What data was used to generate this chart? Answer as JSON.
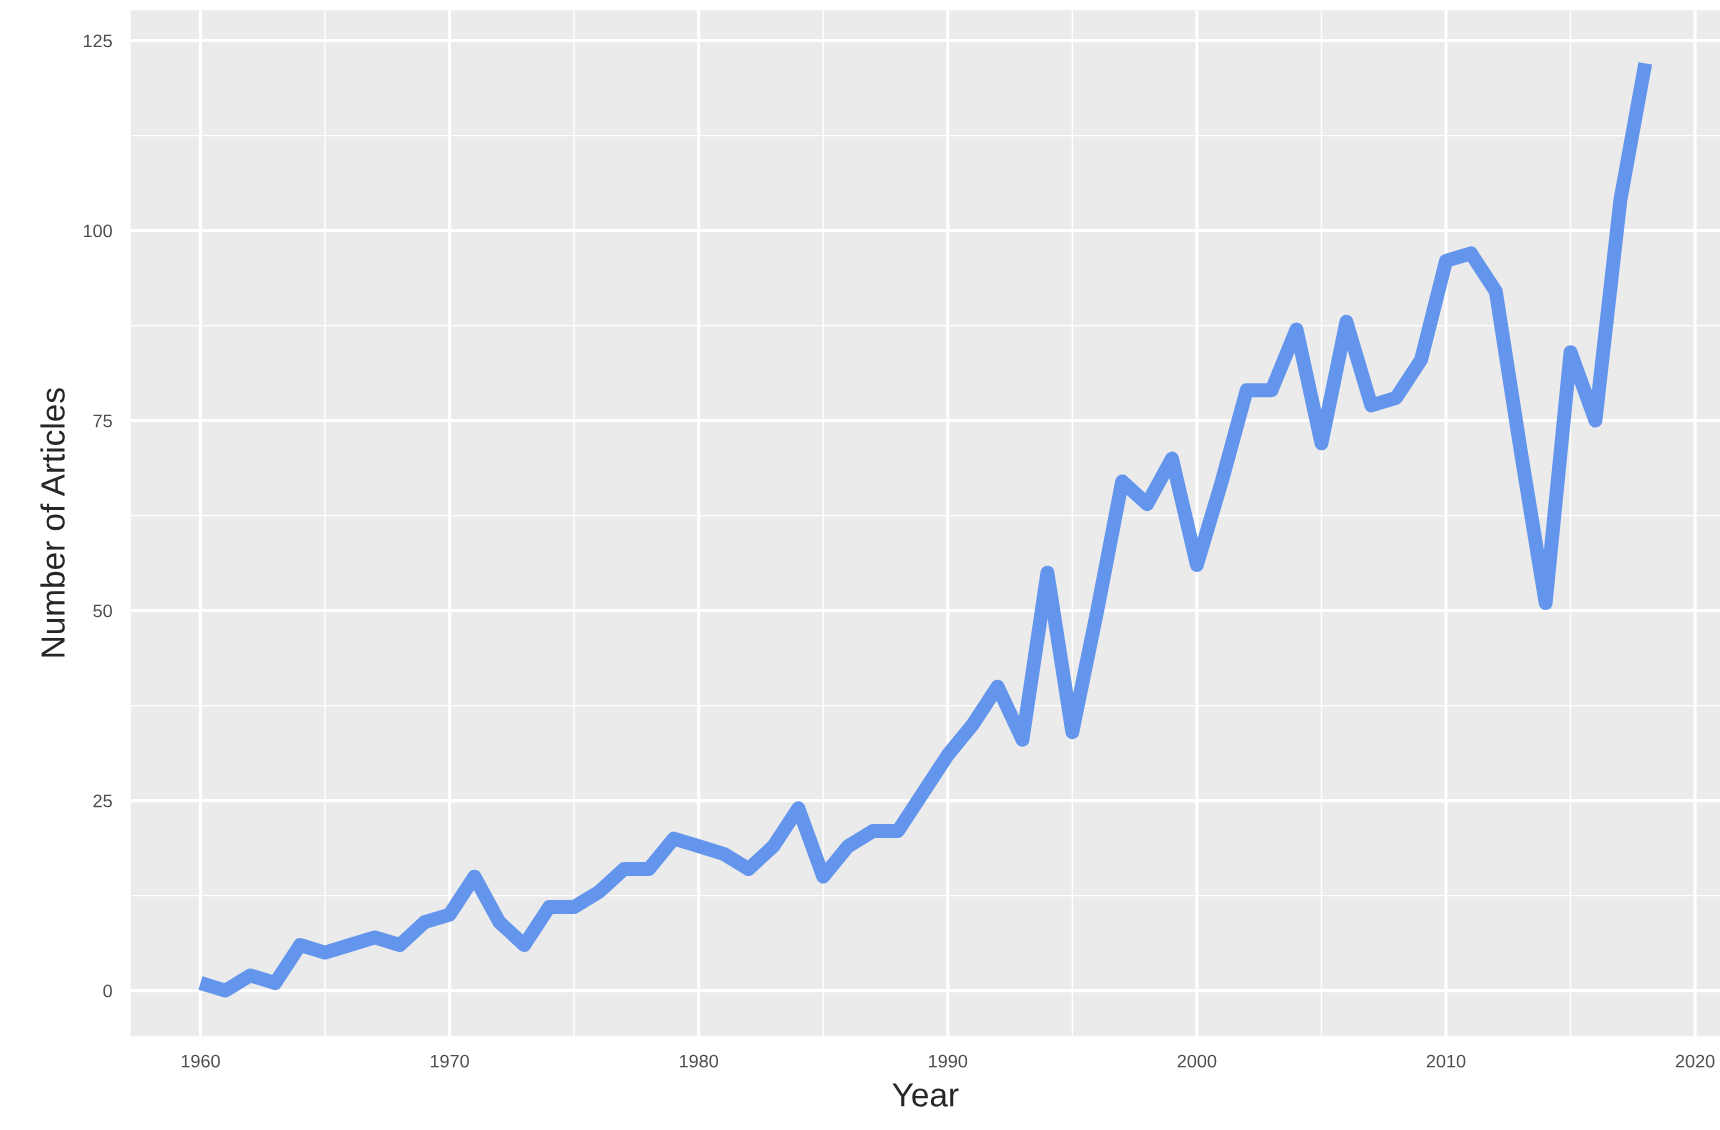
{
  "chart_data": {
    "type": "line",
    "xlabel": "Year",
    "ylabel": "Number of Articles",
    "x": [
      1960,
      1961,
      1962,
      1963,
      1964,
      1965,
      1966,
      1967,
      1968,
      1969,
      1970,
      1971,
      1972,
      1973,
      1974,
      1975,
      1976,
      1977,
      1978,
      1979,
      1980,
      1981,
      1982,
      1983,
      1984,
      1985,
      1986,
      1987,
      1988,
      1989,
      1990,
      1991,
      1992,
      1993,
      1994,
      1995,
      1996,
      1997,
      1998,
      1999,
      2000,
      2001,
      2002,
      2003,
      2004,
      2005,
      2006,
      2007,
      2008,
      2009,
      2010,
      2011,
      2012,
      2013,
      2014,
      2015,
      2016,
      2017,
      2018
    ],
    "series": [
      {
        "color": "#6495ed",
        "values": [
          1,
          0,
          2,
          1,
          6,
          5,
          6,
          7,
          6,
          9,
          10,
          15,
          9,
          6,
          11,
          11,
          13,
          16,
          16,
          20,
          19,
          18,
          16,
          19,
          24,
          15,
          19,
          21,
          21,
          26,
          31,
          35,
          40,
          33,
          55,
          34,
          50,
          67,
          64,
          70,
          56,
          67,
          79,
          79,
          87,
          72,
          88,
          77,
          78,
          83,
          96,
          97,
          92,
          71,
          51,
          84,
          75,
          104,
          122
        ]
      }
    ],
    "xlim": [
      1957.2,
      2021
    ],
    "ylim": [
      -6,
      129
    ],
    "xticks": [
      1960,
      1970,
      1980,
      1990,
      2000,
      2010,
      2020
    ],
    "yticks": [
      0,
      25,
      50,
      75,
      100,
      125
    ],
    "grid": true,
    "legend": false
  }
}
